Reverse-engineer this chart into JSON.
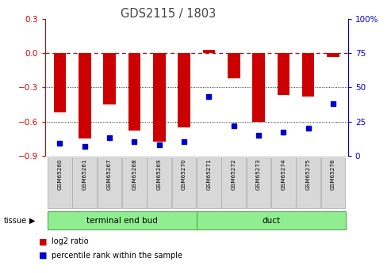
{
  "title": "GDS2115 / 1803",
  "samples": [
    "GSM65260",
    "GSM65261",
    "GSM65267",
    "GSM65268",
    "GSM65269",
    "GSM65270",
    "GSM65271",
    "GSM65272",
    "GSM65273",
    "GSM65274",
    "GSM65275",
    "GSM65276"
  ],
  "log2_ratio": [
    -0.52,
    -0.75,
    -0.45,
    -0.68,
    -0.78,
    -0.65,
    0.03,
    -0.22,
    -0.6,
    -0.37,
    -0.38,
    -0.03
  ],
  "percentile": [
    9,
    7,
    13,
    10,
    8,
    10,
    43,
    22,
    15,
    17,
    20,
    38
  ],
  "groups": [
    {
      "label": "terminal end bud",
      "start": 0,
      "end": 6,
      "color": "#90EE90"
    },
    {
      "label": "duct",
      "start": 6,
      "end": 12,
      "color": "#90EE90"
    }
  ],
  "bar_color": "#CC0000",
  "dot_color": "#0000CC",
  "dashed_line_color": "#CC0000",
  "grid_color": "#000000",
  "ylim_left": [
    -0.9,
    0.3
  ],
  "ylim_right": [
    0,
    100
  ],
  "yticks_left": [
    -0.9,
    -0.6,
    -0.3,
    0.0,
    0.3
  ],
  "yticks_right": [
    0,
    25,
    50,
    75,
    100
  ],
  "background_color": "#FFFFFF",
  "plot_bg_color": "#FFFFFF",
  "tick_label_color_left": "#CC0000",
  "tick_label_color_right": "#0000CC",
  "label_bg_color": "#D8D8D8",
  "label_border_color": "#AAAAAA"
}
